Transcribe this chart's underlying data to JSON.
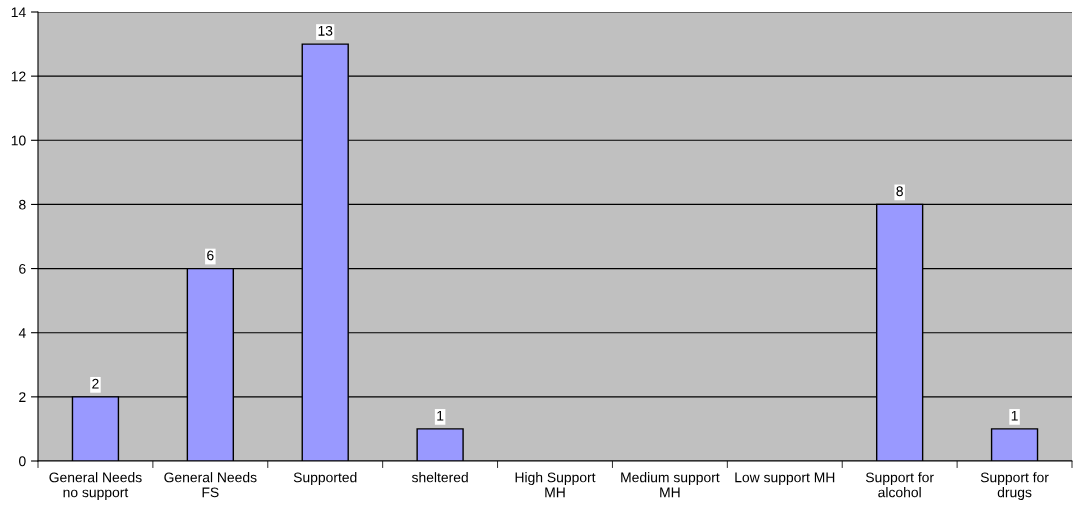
{
  "chart_data": {
    "type": "bar",
    "categories": [
      "General Needs\nno support",
      "General Needs\nFS",
      "Supported",
      "sheltered",
      "High Support\nMH",
      "Medium support\nMH",
      "Low support MH",
      "Support for\nalcohol",
      "Support for\ndrugs"
    ],
    "values": [
      2,
      6,
      13,
      1,
      0,
      0,
      0,
      8,
      1
    ],
    "value_labels": [
      "2",
      "6",
      "13",
      "1",
      null,
      null,
      null,
      "8",
      "1"
    ],
    "color": "#9999ff",
    "ylim": [
      0,
      14
    ],
    "yticks": [
      0,
      2,
      4,
      6,
      8,
      10,
      12,
      14
    ],
    "grid": "y",
    "legend": false
  }
}
